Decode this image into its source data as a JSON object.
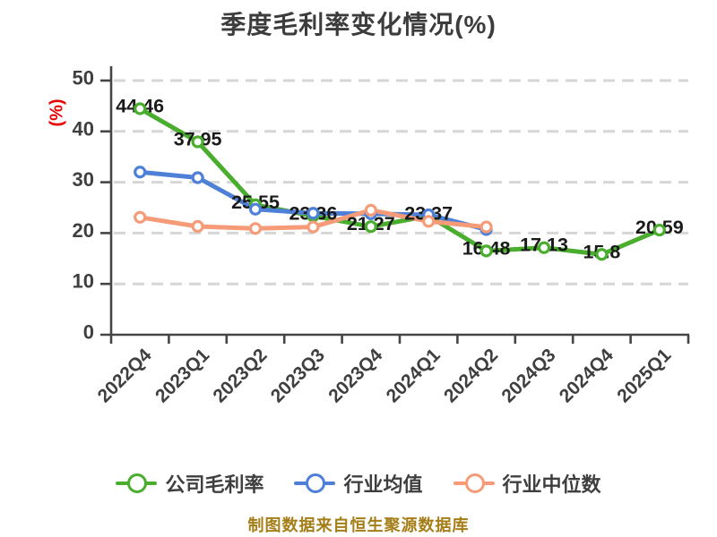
{
  "title": "季度毛利率变化情况(%)",
  "caption": "制图数据来自恒生聚源数据库",
  "chart_data": {
    "type": "line",
    "title": "季度毛利率变化情况(%)",
    "categories": [
      "2022Q4",
      "2023Q1",
      "2023Q2",
      "2023Q3",
      "2023Q4",
      "2024Q1",
      "2024Q2",
      "2024Q3",
      "2024Q4",
      "2025Q1"
    ],
    "series": [
      {
        "id": "company-gross-margin",
        "name": "公司毛利率",
        "color": "#49ad2d",
        "values": [
          44.46,
          37.95,
          25.55,
          23.36,
          21.27,
          23.37,
          16.48,
          17.13,
          15.8,
          20.59
        ],
        "labels": [
          "44.46",
          "37.95",
          "25.55",
          "23.36",
          "21.27",
          "23.37",
          "16.48",
          "17.13",
          "15.8",
          "20.59"
        ],
        "show_labels": true
      },
      {
        "id": "industry-average",
        "name": "行业均值",
        "color": "#4e80d8",
        "values": [
          32.0,
          30.9,
          24.7,
          23.9,
          23.8,
          23.6,
          20.7
        ],
        "show_labels": false
      },
      {
        "id": "industry-median",
        "name": "行业中位数",
        "color": "#f59b77",
        "values": [
          23.1,
          21.3,
          20.9,
          21.2,
          24.5,
          22.3,
          21.2
        ],
        "show_labels": false
      }
    ],
    "xlabel": "",
    "ylabel": "(%)",
    "ylim": [
      0,
      50
    ],
    "yticks": [
      0,
      10,
      20,
      30,
      40,
      50
    ],
    "grid": true,
    "grid_style": "dashed",
    "legend_position": "bottom",
    "marker": "circle-white-fill"
  },
  "colors": {
    "background": "#ffffff",
    "title": "#3c3c3c",
    "axis": "#454547",
    "tick_label": "#3f3f3f",
    "value_label": "#1a1a1a",
    "grid": "#d6d6d6",
    "ylabel": "#e60000",
    "legend_text": "#3f3f3f",
    "caption": "#a57e17"
  }
}
